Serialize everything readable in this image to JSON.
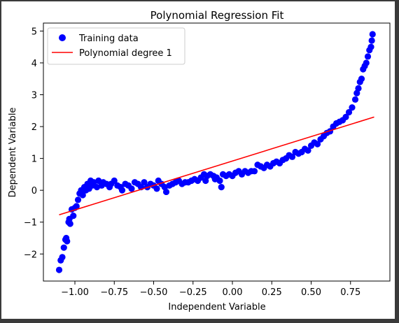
{
  "chart_data": {
    "type": "scatter",
    "title": "Polynomial Regression Fit",
    "xlabel": "Independent Variable",
    "ylabel": "Dependent Variable",
    "xlim": [
      -1.2,
      1.0
    ],
    "ylim": [
      -2.85,
      5.25
    ],
    "grid": false,
    "legend_position": "top-left",
    "x_ticks": [
      -1.0,
      -0.75,
      -0.5,
      -0.25,
      0.0,
      0.25,
      0.5,
      0.75
    ],
    "x_tick_labels": [
      "−1.00",
      "−0.75",
      "−0.50",
      "−0.25",
      "0.00",
      "0.25",
      "0.50",
      "0.75"
    ],
    "y_ticks": [
      -2,
      -1,
      0,
      1,
      2,
      3,
      4,
      5
    ],
    "y_tick_labels": [
      "−2",
      "−1",
      "0",
      "1",
      "2",
      "3",
      "4",
      "5"
    ],
    "series": [
      {
        "name": "Training data",
        "kind": "scatter",
        "color": "#0000ff",
        "points": [
          [
            -1.1,
            -2.5
          ],
          [
            -1.09,
            -2.2
          ],
          [
            -1.08,
            -2.1
          ],
          [
            -1.07,
            -1.8
          ],
          [
            -1.06,
            -1.55
          ],
          [
            -1.055,
            -1.5
          ],
          [
            -1.05,
            -1.6
          ],
          [
            -1.04,
            -1.0
          ],
          [
            -1.035,
            -0.9
          ],
          [
            -1.03,
            -1.05
          ],
          [
            -1.02,
            -0.6
          ],
          [
            -1.01,
            -0.8
          ],
          [
            -1.0,
            -0.55
          ],
          [
            -0.99,
            -0.5
          ],
          [
            -0.98,
            -0.3
          ],
          [
            -0.97,
            -0.1
          ],
          [
            -0.96,
            0.0
          ],
          [
            -0.95,
            -0.15
          ],
          [
            -0.94,
            0.1
          ],
          [
            -0.93,
            0.0
          ],
          [
            -0.92,
            0.2
          ],
          [
            -0.91,
            0.05
          ],
          [
            -0.9,
            0.3
          ],
          [
            -0.89,
            0.15
          ],
          [
            -0.88,
            0.25
          ],
          [
            -0.86,
            0.1
          ],
          [
            -0.85,
            0.3
          ],
          [
            -0.83,
            0.15
          ],
          [
            -0.82,
            0.25
          ],
          [
            -0.8,
            0.2
          ],
          [
            -0.78,
            0.1
          ],
          [
            -0.77,
            0.2
          ],
          [
            -0.75,
            0.3
          ],
          [
            -0.73,
            0.15
          ],
          [
            -0.71,
            0.1
          ],
          [
            -0.7,
            0.0
          ],
          [
            -0.68,
            0.2
          ],
          [
            -0.66,
            0.15
          ],
          [
            -0.64,
            0.05
          ],
          [
            -0.62,
            0.25
          ],
          [
            -0.6,
            0.2
          ],
          [
            -0.58,
            0.1
          ],
          [
            -0.56,
            0.25
          ],
          [
            -0.54,
            0.1
          ],
          [
            -0.52,
            0.2
          ],
          [
            -0.5,
            0.15
          ],
          [
            -0.48,
            0.05
          ],
          [
            -0.47,
            0.3
          ],
          [
            -0.45,
            0.2
          ],
          [
            -0.43,
            0.1
          ],
          [
            -0.42,
            -0.05
          ],
          [
            -0.4,
            0.15
          ],
          [
            -0.38,
            0.2
          ],
          [
            -0.36,
            0.25
          ],
          [
            -0.34,
            0.3
          ],
          [
            -0.32,
            0.2
          ],
          [
            -0.3,
            0.25
          ],
          [
            -0.28,
            0.25
          ],
          [
            -0.26,
            0.3
          ],
          [
            -0.24,
            0.35
          ],
          [
            -0.22,
            0.3
          ],
          [
            -0.2,
            0.4
          ],
          [
            -0.18,
            0.5
          ],
          [
            -0.17,
            0.3
          ],
          [
            -0.16,
            0.45
          ],
          [
            -0.14,
            0.5
          ],
          [
            -0.12,
            0.45
          ],
          [
            -0.11,
            0.35
          ],
          [
            -0.1,
            0.4
          ],
          [
            -0.08,
            0.3
          ],
          [
            -0.07,
            0.1
          ],
          [
            -0.06,
            0.5
          ],
          [
            -0.04,
            0.45
          ],
          [
            -0.02,
            0.5
          ],
          [
            0.0,
            0.45
          ],
          [
            0.02,
            0.55
          ],
          [
            0.04,
            0.6
          ],
          [
            0.06,
            0.5
          ],
          [
            0.08,
            0.6
          ],
          [
            0.1,
            0.55
          ],
          [
            0.12,
            0.6
          ],
          [
            0.14,
            0.6
          ],
          [
            0.16,
            0.8
          ],
          [
            0.18,
            0.75
          ],
          [
            0.2,
            0.7
          ],
          [
            0.22,
            0.8
          ],
          [
            0.24,
            0.75
          ],
          [
            0.26,
            0.85
          ],
          [
            0.28,
            0.9
          ],
          [
            0.3,
            0.85
          ],
          [
            0.32,
            0.95
          ],
          [
            0.34,
            1.0
          ],
          [
            0.36,
            1.1
          ],
          [
            0.38,
            1.05
          ],
          [
            0.4,
            1.2
          ],
          [
            0.42,
            1.15
          ],
          [
            0.44,
            1.2
          ],
          [
            0.46,
            1.3
          ],
          [
            0.48,
            1.25
          ],
          [
            0.5,
            1.4
          ],
          [
            0.52,
            1.5
          ],
          [
            0.54,
            1.45
          ],
          [
            0.56,
            1.6
          ],
          [
            0.58,
            1.7
          ],
          [
            0.6,
            1.8
          ],
          [
            0.62,
            1.85
          ],
          [
            0.64,
            2.0
          ],
          [
            0.66,
            2.1
          ],
          [
            0.68,
            2.15
          ],
          [
            0.7,
            2.2
          ],
          [
            0.72,
            2.3
          ],
          [
            0.74,
            2.45
          ],
          [
            0.76,
            2.6
          ],
          [
            0.78,
            2.85
          ],
          [
            0.79,
            3.05
          ],
          [
            0.8,
            3.2
          ],
          [
            0.81,
            3.4
          ],
          [
            0.82,
            3.5
          ],
          [
            0.83,
            3.8
          ],
          [
            0.84,
            3.9
          ],
          [
            0.85,
            4.0
          ],
          [
            0.86,
            4.2
          ],
          [
            0.87,
            4.4
          ],
          [
            0.88,
            4.5
          ],
          [
            0.885,
            4.7
          ],
          [
            0.89,
            4.9
          ]
        ]
      },
      {
        "name": "Polynomial degree 1",
        "kind": "line",
        "color": "#ff0000",
        "points": [
          [
            -1.1,
            -0.77
          ],
          [
            0.9,
            2.3
          ]
        ]
      }
    ]
  }
}
